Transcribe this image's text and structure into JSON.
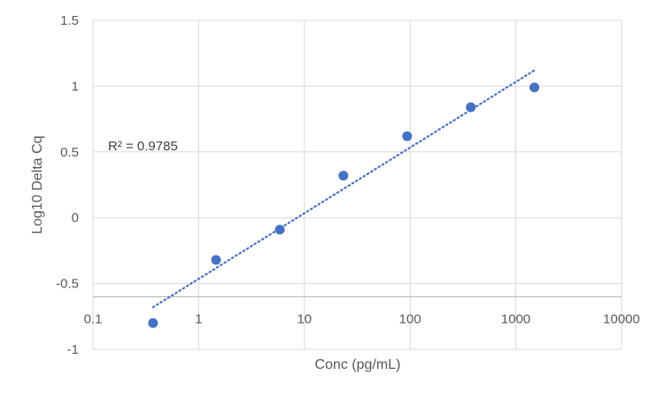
{
  "chart_data": {
    "type": "scatter",
    "xlabel": "Conc (pg/mL)",
    "ylabel": "Log10 Delta Cq",
    "x_scale": "log",
    "xlim": [
      0.1,
      10000
    ],
    "ylim": [
      -1,
      1.5
    ],
    "x_axis_crosses_y_at": -0.6,
    "x_ticks": [
      "0.1",
      "1",
      "10",
      "100",
      "1000",
      "10000"
    ],
    "y_ticks": [
      "1.5",
      "1",
      "0.5",
      "0",
      "-0.5",
      "-1"
    ],
    "grid": true,
    "marker_color": "#4472C4",
    "points": [
      {
        "x": 0.37,
        "y": -0.8
      },
      {
        "x": 1.46,
        "y": -0.32
      },
      {
        "x": 5.86,
        "y": -0.09
      },
      {
        "x": 23.4,
        "y": 0.32
      },
      {
        "x": 93.8,
        "y": 0.62
      },
      {
        "x": 375,
        "y": 0.84
      },
      {
        "x": 1500,
        "y": 0.99
      }
    ],
    "trendline": {
      "type": "linear-log",
      "style": "dotted",
      "color": "#4472C4",
      "x_range": [
        0.37,
        1500
      ],
      "y_range": [
        -0.68,
        1.12
      ]
    },
    "r_squared_label": "R² = 0.9785"
  }
}
